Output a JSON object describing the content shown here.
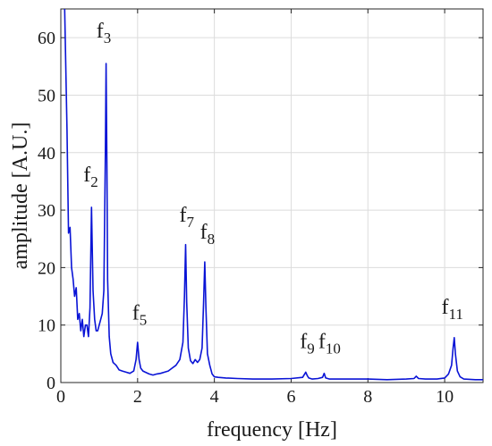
{
  "chart_data": {
    "type": "line",
    "title": "",
    "xlabel": "frequency [Hz]",
    "ylabel": "amplitude [A.U.]",
    "xlim": [
      0,
      11
    ],
    "ylim": [
      0,
      65
    ],
    "xticks": [
      0,
      2,
      4,
      6,
      8,
      10
    ],
    "yticks": [
      0,
      10,
      20,
      30,
      40,
      50,
      60
    ],
    "grid": true,
    "line_color": "#0a14d6",
    "series": [
      {
        "x": [
          0.1,
          0.16,
          0.2,
          0.24,
          0.28,
          0.32,
          0.36,
          0.4,
          0.44,
          0.48,
          0.52,
          0.56,
          0.6,
          0.64,
          0.68,
          0.72,
          0.76,
          0.8,
          0.84,
          0.88,
          0.92,
          0.96,
          1.0,
          1.04,
          1.08,
          1.12,
          1.16,
          1.18,
          1.2,
          1.22,
          1.26,
          1.3,
          1.36,
          1.44,
          1.52,
          1.6,
          1.7,
          1.8,
          1.9,
          1.96,
          2.0,
          2.04,
          2.08,
          2.14,
          2.2,
          2.3,
          2.4,
          2.5,
          2.6,
          2.7,
          2.8,
          2.9,
          3.0,
          3.1,
          3.18,
          3.22,
          3.25,
          3.28,
          3.32,
          3.38,
          3.44,
          3.5,
          3.56,
          3.62,
          3.68,
          3.72,
          3.75,
          3.78,
          3.82,
          3.88,
          3.94,
          4.0,
          4.1,
          4.3,
          4.6,
          5.0,
          5.5,
          6.0,
          6.3,
          6.38,
          6.42,
          6.46,
          6.55,
          6.7,
          6.82,
          6.86,
          6.9,
          7.0,
          7.5,
          8.0,
          8.5,
          9.0,
          9.2,
          9.26,
          9.32,
          9.5,
          9.8,
          10.0,
          10.1,
          10.18,
          10.22,
          10.25,
          10.28,
          10.33,
          10.4,
          10.5,
          10.8,
          11.0
        ],
        "y": [
          65,
          44,
          26,
          27,
          20,
          18,
          15,
          16.5,
          11,
          12,
          9,
          11,
          8,
          10,
          10,
          8,
          13,
          30.5,
          16,
          11,
          9,
          9,
          10,
          11,
          12,
          16,
          40,
          55.5,
          38,
          18,
          8,
          5,
          3.5,
          3,
          2.2,
          2,
          1.8,
          1.6,
          2,
          4,
          7,
          4,
          2.5,
          2,
          1.8,
          1.5,
          1.3,
          1.5,
          1.6,
          1.8,
          2,
          2.5,
          3,
          4,
          7,
          15,
          24,
          14,
          6,
          3.8,
          3.3,
          4,
          3.5,
          4,
          6,
          14,
          21,
          13,
          5,
          3,
          1.5,
          1,
          0.9,
          0.8,
          0.7,
          0.6,
          0.6,
          0.7,
          0.9,
          1.8,
          1.2,
          0.8,
          0.6,
          0.7,
          0.9,
          1.6,
          0.8,
          0.6,
          0.6,
          0.6,
          0.5,
          0.6,
          0.7,
          1.1,
          0.7,
          0.6,
          0.6,
          0.8,
          1.5,
          3,
          6,
          7.8,
          5,
          2,
          1,
          0.6,
          0.5,
          0.5
        ]
      }
    ],
    "annotations": [
      {
        "text": "f",
        "sub": "2",
        "x": 0.78,
        "y": 35
      },
      {
        "text": "f",
        "sub": "3",
        "x": 1.12,
        "y": 60
      },
      {
        "text": "f",
        "sub": "5",
        "x": 2.05,
        "y": 11
      },
      {
        "text": "f",
        "sub": "7",
        "x": 3.28,
        "y": 28
      },
      {
        "text": "f",
        "sub": "8",
        "x": 3.82,
        "y": 25
      },
      {
        "text": "f",
        "sub": "9",
        "x": 6.42,
        "y": 6
      },
      {
        "text": "f",
        "sub": "10",
        "x": 7.0,
        "y": 6
      },
      {
        "text": "f",
        "sub": "11",
        "x": 10.2,
        "y": 12
      }
    ]
  }
}
